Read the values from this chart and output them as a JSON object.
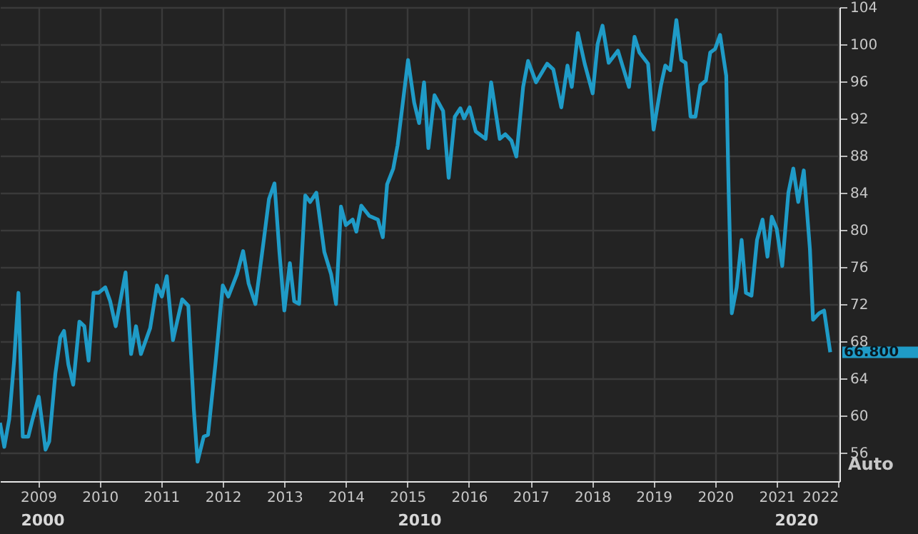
{
  "chart_data": {
    "type": "line",
    "x": [
      2008.38,
      2008.45,
      2008.53,
      2008.61,
      2008.68,
      2008.75,
      2008.84,
      2008.91,
      2009.01,
      2009.12,
      2009.18,
      2009.28,
      2009.36,
      2009.42,
      2009.49,
      2009.57,
      2009.67,
      2009.75,
      2009.82,
      2009.9,
      2009.98,
      2010.09,
      2010.17,
      2010.26,
      2010.42,
      2010.51,
      2010.59,
      2010.67,
      2010.82,
      2010.93,
      2011.01,
      2011.09,
      2011.19,
      2011.34,
      2011.44,
      2011.53,
      2011.59,
      2011.69,
      2011.76,
      2011.88,
      2012.0,
      2012.09,
      2012.23,
      2012.33,
      2012.42,
      2012.53,
      2012.67,
      2012.75,
      2012.84,
      2012.92,
      2013.0,
      2013.09,
      2013.16,
      2013.24,
      2013.34,
      2013.42,
      2013.52,
      2013.65,
      2013.76,
      2013.84,
      2013.92,
      2014.0,
      2014.11,
      2014.17,
      2014.25,
      2014.38,
      2014.52,
      2014.6,
      2014.67,
      2014.77,
      2014.84,
      2015.01,
      2015.11,
      2015.19,
      2015.27,
      2015.34,
      2015.44,
      2015.58,
      2015.67,
      2015.77,
      2015.86,
      2015.92,
      2016.01,
      2016.11,
      2016.27,
      2016.36,
      2016.5,
      2016.59,
      2016.69,
      2016.77,
      2016.88,
      2016.96,
      2017.09,
      2017.27,
      2017.37,
      2017.5,
      2017.6,
      2017.67,
      2017.77,
      2017.88,
      2018.01,
      2018.09,
      2018.17,
      2018.27,
      2018.42,
      2018.6,
      2018.69,
      2018.77,
      2018.91,
      2019.0,
      2019.12,
      2019.19,
      2019.27,
      2019.37,
      2019.45,
      2019.52,
      2019.6,
      2019.68,
      2019.76,
      2019.85,
      2019.92,
      2020.0,
      2020.08,
      2020.18,
      2020.22,
      2020.27,
      2020.35,
      2020.43,
      2020.5,
      2020.59,
      2020.68,
      2020.77,
      2020.85,
      2020.92,
      2021.0,
      2021.09,
      2021.19,
      2021.27,
      2021.35,
      2021.44,
      2021.54,
      2021.59,
      2021.69,
      2021.77,
      2021.87
    ],
    "values": [
      59.2,
      56.6,
      59.6,
      65.9,
      73.2,
      57.7,
      57.7,
      59.6,
      62.0,
      56.3,
      57.2,
      64.5,
      68.4,
      69.1,
      65.5,
      63.3,
      70.1,
      69.6,
      65.9,
      73.2,
      73.2,
      73.8,
      72.3,
      69.6,
      75.4,
      66.6,
      69.6,
      66.6,
      69.4,
      74.0,
      72.8,
      75.0,
      68.1,
      72.5,
      71.8,
      60.6,
      55.0,
      57.7,
      57.9,
      65.5,
      74.0,
      72.8,
      75.2,
      77.7,
      74.2,
      72.0,
      79.1,
      83.3,
      85.0,
      77.6,
      71.3,
      76.4,
      72.3,
      72.0,
      83.7,
      83.0,
      84.0,
      77.6,
      75.2,
      72.0,
      82.5,
      80.5,
      81.1,
      79.8,
      82.6,
      81.5,
      81.1,
      79.2,
      84.9,
      86.6,
      89.1,
      98.3,
      93.7,
      91.5,
      95.9,
      88.8,
      94.5,
      92.8,
      85.6,
      92.2,
      93.1,
      92.0,
      93.2,
      90.6,
      89.8,
      95.9,
      89.8,
      90.3,
      89.6,
      87.9,
      95.4,
      98.2,
      95.9,
      97.9,
      97.3,
      93.2,
      97.7,
      95.4,
      101.2,
      97.9,
      94.7,
      100.0,
      102.0,
      98.0,
      99.3,
      95.4,
      100.8,
      99.1,
      97.9,
      90.8,
      95.6,
      97.7,
      97.2,
      102.6,
      98.3,
      98.0,
      92.2,
      92.2,
      95.6,
      96.1,
      99.1,
      99.5,
      101.0,
      96.6,
      84.0,
      71.0,
      73.8,
      78.9,
      73.2,
      72.9,
      78.9,
      81.1,
      77.1,
      81.4,
      80.1,
      76.1,
      84.0,
      86.6,
      83.0,
      86.4,
      77.9,
      70.3,
      71.0,
      71.3,
      66.8
    ],
    "value_labels": [
      null,
      null,
      null,
      null,
      null,
      null,
      null,
      null,
      null,
      null,
      null,
      null,
      null,
      null,
      null,
      null,
      null,
      null,
      null,
      null,
      null,
      null,
      null,
      null,
      null,
      null,
      null,
      null,
      null,
      null,
      null,
      null,
      null,
      null,
      null,
      null,
      null,
      null,
      null,
      null,
      null,
      null,
      null,
      null,
      null,
      null,
      null,
      null,
      null,
      null,
      null,
      null,
      null,
      null,
      null,
      null,
      null,
      null,
      null,
      null,
      null,
      null,
      null,
      null,
      null,
      null,
      null,
      null,
      null,
      null,
      null,
      null,
      null,
      null,
      null,
      null,
      null,
      null,
      null,
      null,
      null,
      null,
      null,
      null,
      null,
      null,
      null,
      null,
      null,
      null,
      null,
      null,
      null,
      null,
      null,
      null,
      null,
      null,
      null,
      null,
      null,
      null,
      null,
      null,
      null,
      null,
      null,
      null,
      null,
      null,
      null,
      null,
      null,
      null,
      null,
      null,
      null,
      null,
      null,
      null,
      null,
      null,
      null,
      null,
      null,
      null,
      null,
      null,
      null,
      null,
      null,
      null,
      null,
      null,
      null,
      null,
      null,
      null,
      null,
      null,
      null,
      null,
      null,
      null,
      "66.800"
    ],
    "color": "#1f9bc7",
    "xlim": [
      2008.38,
      2022.02
    ],
    "xticks": [
      2009,
      2010,
      2011,
      2012,
      2013,
      2014,
      2015,
      2016,
      2017,
      2018,
      2019,
      2020,
      2021,
      2022
    ],
    "ylim": [
      52.9,
      104
    ],
    "yticks": [
      56,
      60,
      64,
      68,
      72,
      76,
      80,
      84,
      88,
      92,
      96,
      100,
      104
    ],
    "grid": true,
    "annotations": [
      "2000",
      "2010",
      "2020",
      "Auto"
    ]
  }
}
